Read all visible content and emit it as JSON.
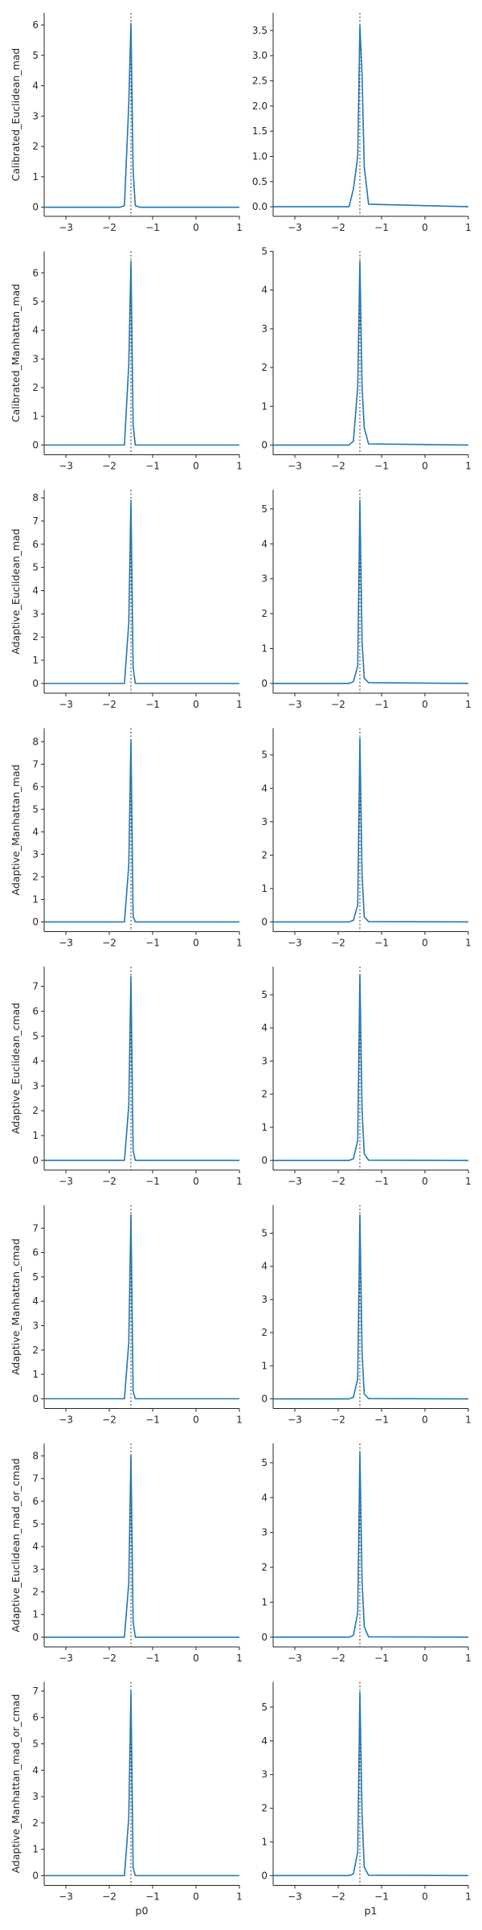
{
  "chart_data": {
    "type": "line",
    "layout": "grid-8x2",
    "x_tick_labels": [
      "−3",
      "−2",
      "−1",
      "0",
      "1"
    ],
    "x_ticks": [
      -3,
      -2,
      -1,
      0,
      1
    ],
    "xlim": [
      -3.5,
      1
    ],
    "column_xlabels": [
      "p0",
      "p1"
    ],
    "reference_x": -1.5,
    "x": [
      -3.5,
      -1.75,
      -1.65,
      -1.55,
      -1.5,
      -1.45,
      -1.4,
      -1.3,
      1.0
    ],
    "rows": [
      {
        "ylabel": "Calibrated_Euclidean_mad",
        "panels": [
          {
            "ylim": [
              -0.3,
              6.4
            ],
            "yticks": [
              0,
              1,
              2,
              3,
              4,
              5,
              6
            ],
            "y": [
              0,
              0,
              0.05,
              3.4,
              6.05,
              1.2,
              0.05,
              0,
              0
            ]
          },
          {
            "ylim": [
              -0.19,
              3.85
            ],
            "yticks": [
              0,
              0.5,
              1.0,
              1.5,
              2.0,
              2.5,
              3.0,
              3.5
            ],
            "ytick_labels": [
              "0.0",
              "0.5",
              "1.0",
              "1.5",
              "2.0",
              "2.5",
              "3.0",
              "3.5"
            ],
            "y": [
              0,
              0,
              0.35,
              1.0,
              3.6,
              2.6,
              0.8,
              0.05,
              0
            ]
          }
        ]
      },
      {
        "ylabel": "Calibrated_Manhattan_mad",
        "panels": [
          {
            "ylim": [
              -0.34,
              6.75
            ],
            "yticks": [
              0,
              1,
              2,
              3,
              4,
              5,
              6
            ],
            "y": [
              0,
              0,
              0.0,
              2.8,
              6.4,
              0.7,
              0.0,
              0,
              0
            ]
          },
          {
            "ylim": [
              -0.25,
              5.0
            ],
            "yticks": [
              0,
              1,
              2,
              3,
              4,
              5
            ],
            "y": [
              0,
              0,
              0.1,
              1.5,
              4.75,
              1.5,
              0.45,
              0.03,
              0
            ]
          }
        ]
      },
      {
        "ylabel": "Adaptive_Euclidean_mad",
        "panels": [
          {
            "ylim": [
              -0.42,
              8.35
            ],
            "yticks": [
              0,
              1,
              2,
              3,
              4,
              5,
              6,
              7,
              8
            ],
            "y": [
              0,
              0,
              0.0,
              2.6,
              7.9,
              0.7,
              0.0,
              0,
              0
            ]
          },
          {
            "ylim": [
              -0.28,
              5.55
            ],
            "yticks": [
              0,
              1,
              2,
              3,
              4,
              5
            ],
            "y": [
              0,
              0,
              0.05,
              0.5,
              5.25,
              1.2,
              0.15,
              0.02,
              0
            ]
          }
        ]
      },
      {
        "ylabel": "Adaptive_Manhattan_mad",
        "panels": [
          {
            "ylim": [
              -0.43,
              8.6
            ],
            "yticks": [
              0,
              1,
              2,
              3,
              4,
              5,
              6,
              7,
              8
            ],
            "y": [
              0,
              0,
              0.0,
              2.5,
              8.1,
              0.25,
              0.0,
              0,
              0
            ]
          },
          {
            "ylim": [
              -0.29,
              5.8
            ],
            "yticks": [
              0,
              1,
              2,
              3,
              4,
              5
            ],
            "y": [
              0,
              0,
              0.05,
              0.5,
              5.5,
              1.4,
              0.15,
              0.01,
              0
            ]
          }
        ]
      },
      {
        "ylabel": "Adaptive_Euclidean_cmad",
        "panels": [
          {
            "ylim": [
              -0.39,
              7.8
            ],
            "yticks": [
              0,
              1,
              2,
              3,
              4,
              5,
              6,
              7
            ],
            "y": [
              0,
              0,
              0.0,
              2.2,
              7.4,
              0.4,
              0.0,
              0,
              0
            ]
          },
          {
            "ylim": [
              -0.29,
              5.85
            ],
            "yticks": [
              0,
              1,
              2,
              3,
              4,
              5
            ],
            "y": [
              0,
              0,
              0.05,
              0.6,
              5.6,
              1.5,
              0.2,
              0.01,
              0
            ]
          }
        ]
      },
      {
        "ylabel": "Adaptive_Manhattan_cmad",
        "panels": [
          {
            "ylim": [
              -0.4,
              7.95
            ],
            "yticks": [
              0,
              1,
              2,
              3,
              4,
              5,
              6,
              7
            ],
            "y": [
              0,
              0,
              0.0,
              2.3,
              7.55,
              0.3,
              0.0,
              0,
              0
            ]
          },
          {
            "ylim": [
              -0.29,
              5.85
            ],
            "yticks": [
              0,
              1,
              2,
              3,
              4,
              5
            ],
            "y": [
              0,
              0,
              0.05,
              0.6,
              5.55,
              1.4,
              0.15,
              0.01,
              0
            ]
          }
        ]
      },
      {
        "ylabel": "Adaptive_Euclidean_mad_or_cmad",
        "panels": [
          {
            "ylim": [
              -0.43,
              8.55
            ],
            "yticks": [
              0,
              1,
              2,
              3,
              4,
              5,
              6,
              7,
              8
            ],
            "y": [
              0,
              0,
              0.0,
              2.4,
              8.05,
              0.7,
              0.0,
              0,
              0
            ]
          },
          {
            "ylim": [
              -0.28,
              5.55
            ],
            "yticks": [
              0,
              1,
              2,
              3,
              4,
              5
            ],
            "y": [
              0,
              0,
              0.05,
              0.7,
              5.3,
              1.6,
              0.3,
              0.01,
              0
            ]
          }
        ]
      },
      {
        "ylabel": "Adaptive_Manhattan_mad_or_cmad",
        "panels": [
          {
            "ylim": [
              -0.37,
              7.35
            ],
            "yticks": [
              0,
              1,
              2,
              3,
              4,
              5,
              6,
              7
            ],
            "y": [
              0,
              0,
              0.0,
              2.2,
              7.0,
              0.3,
              0.0,
              0,
              0
            ]
          },
          {
            "ylim": [
              -0.29,
              5.75
            ],
            "yticks": [
              0,
              1,
              2,
              3,
              4,
              5
            ],
            "y": [
              0,
              0,
              0.05,
              0.7,
              5.45,
              1.8,
              0.25,
              0.01,
              0
            ]
          }
        ]
      }
    ]
  }
}
